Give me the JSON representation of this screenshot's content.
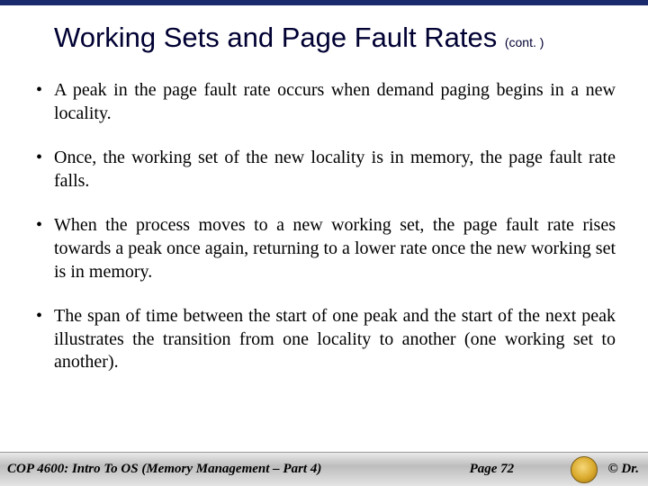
{
  "title": "Working Sets and Page Fault Rates ",
  "title_cont": "(cont. )",
  "bullets": [
    "A peak in the page fault rate occurs when demand paging begins in a new locality.",
    "Once, the working set of the new locality is in memory, the page fault rate falls.",
    "When the process moves to a new working set, the page fault rate rises towards a peak once again, returning to a lower rate once the new working set is in memory.",
    "The span of time between the start of one peak and the start of the next peak illustrates the transition from one locality to another (one working set to another)."
  ],
  "footer": {
    "left": "COP 4600: Intro To OS  (Memory Management – Part 4)",
    "mid": "Page 72",
    "right": "© Dr."
  },
  "colors": {
    "top_bar": "#1a2a6c",
    "title_color": "#000033",
    "text_color": "#000000",
    "footer_gradient_top": "#e9e9e9",
    "footer_gradient_mid": "#bdbdbd",
    "footer_gradient_bot": "#e4e4e4"
  }
}
